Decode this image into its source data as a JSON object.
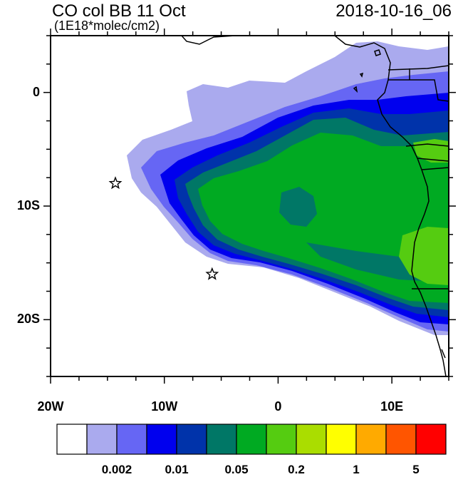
{
  "header": {
    "title": "CO col BB 11 Oct",
    "units": "(1E18*molec/cm2)",
    "datetime": "2018-10-16_06"
  },
  "map": {
    "lon_range": [
      -20,
      15
    ],
    "lat_range": [
      -25,
      5
    ],
    "lon_ticks": [
      {
        "lon": -20,
        "label": "20W"
      },
      {
        "lon": -10,
        "label": "10W"
      },
      {
        "lon": 0,
        "label": "0"
      },
      {
        "lon": 10,
        "label": "10E"
      }
    ],
    "lat_ticks": [
      {
        "lat": 0,
        "label": "0"
      },
      {
        "lat": -10,
        "label": "10S"
      },
      {
        "lat": -20,
        "label": "20S"
      }
    ],
    "markers": [
      {
        "name": "star-marker-1",
        "lon": -14.3,
        "lat": -8.0
      },
      {
        "name": "star-marker-2",
        "lon": -5.8,
        "lat": -16.0
      }
    ]
  },
  "colorbar": {
    "colors": [
      "#ffffff",
      "#aaaaee",
      "#6666f4",
      "#0000ee",
      "#0033aa",
      "#007766",
      "#00aa22",
      "#55cc11",
      "#aadd00",
      "#ffff00",
      "#ffaa00",
      "#ff5500",
      "#ff0000"
    ],
    "labels": [
      {
        "boundary": 2,
        "text": "0.002"
      },
      {
        "boundary": 4,
        "text": "0.01"
      },
      {
        "boundary": 6,
        "text": "0.05"
      },
      {
        "boundary": 8,
        "text": "0.2"
      },
      {
        "boundary": 10,
        "text": "1"
      },
      {
        "boundary": 12,
        "text": "5"
      }
    ]
  }
}
